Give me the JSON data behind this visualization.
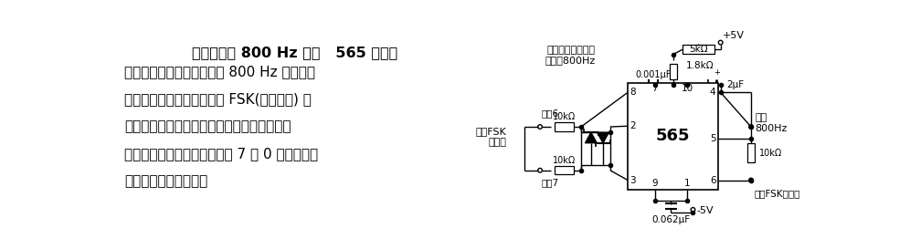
{
  "bg": "#ffffff",
  "title_text": "盒带机用的 800 Hz 时钟   565 锁相环",
  "body_text": "路要调节到在无输入时能以 800 Hz 的频率自\n由振荡。从盒带上所记录的 FSK(频移键控) 数\n据萃取出来的数据脉冲送到输入端时，时钟便\n与数据脉冲同步，在紧接着的 7 个 0 出现期间，\n同步状态仍然保持着。",
  "note_top": "调节到无输入时，\n振荡于800Hz",
  "r1_label": "1.8kΩ",
  "c1_label": "0.001μF",
  "c2_label": "2μF",
  "r_pot_label": "5kΩ",
  "vcc_label": "+5V",
  "vee_label": "-5V",
  "c_bot_label": "0.062μF",
  "r_left1_label": "10kΩ",
  "r_left2_label": "10kΩ",
  "r_out_label": "10kΩ",
  "pin6_label": "引脚6",
  "pin7_label": "引脚7",
  "fsk_in_label": "来自FSK\n检测器",
  "out_label": "输出\n800Hz",
  "fsk_gen_label": "接至FSK发生器",
  "ic_label": "565"
}
